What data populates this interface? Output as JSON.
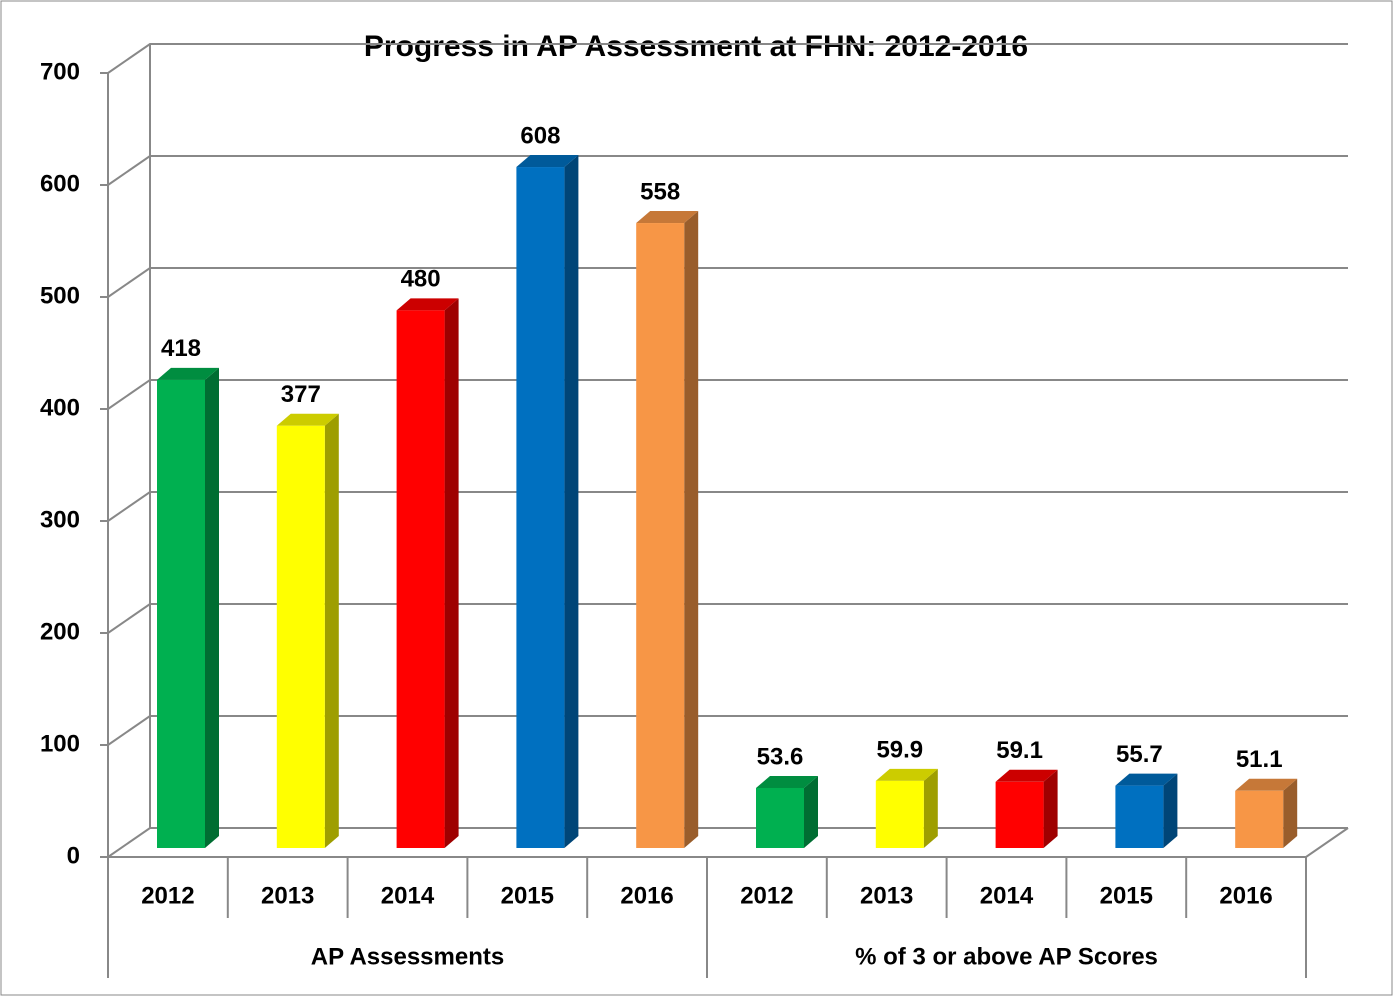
{
  "chart_data": {
    "type": "bar3d",
    "title": "Progress in AP Assessment at FHN: 2012-2016",
    "categories": [
      "AP Assessments",
      "% of 3 or above AP Scores"
    ],
    "series": [
      {
        "name": "2012",
        "color": "#00b050",
        "values": [
          418,
          53.6
        ]
      },
      {
        "name": "2013",
        "color": "#ffff00",
        "values": [
          377,
          59.9
        ]
      },
      {
        "name": "2014",
        "color": "#ff0000",
        "values": [
          480,
          59.1
        ]
      },
      {
        "name": "2015",
        "color": "#0070c0",
        "values": [
          608,
          55.7
        ]
      },
      {
        "name": "2016",
        "color": "#f79646",
        "values": [
          558,
          51.1
        ]
      }
    ],
    "ylim": [
      0,
      700
    ],
    "yticks": [
      0,
      100,
      200,
      300,
      400,
      500,
      600,
      700
    ],
    "grid": true
  }
}
